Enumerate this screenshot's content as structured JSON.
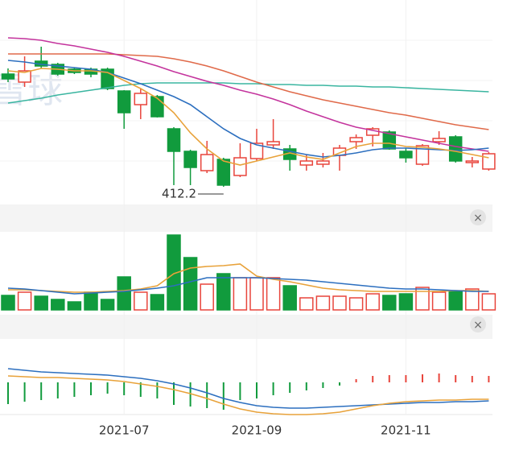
{
  "chart_data": {
    "type": "candlestick",
    "watermark": "雪球",
    "up_color": "#e8453c",
    "down_color": "#119b3d",
    "categories": [
      null,
      null,
      null,
      null,
      null,
      null,
      null,
      "2021-07",
      null,
      null,
      null,
      null,
      null,
      null,
      null,
      "2021-09",
      null,
      null,
      null,
      null,
      null,
      null,
      null,
      null,
      "2021-11",
      null,
      null,
      null,
      null,
      null
    ],
    "ylim": [
      403.2,
      528.2
    ],
    "open": [
      482.2,
      477.2,
      490.2,
      488.2,
      485.2,
      485.2,
      485.2,
      471.7,
      463.2,
      468.2,
      448.2,
      434.2,
      422.2,
      429.2,
      419.2,
      429.7,
      438.2,
      435.7,
      425.7,
      426.2,
      431.7,
      440.2,
      444.2,
      446.2,
      434.2,
      426.2,
      440.2,
      443.2,
      427.2,
      423.2
    ],
    "high": [
      485.7,
      493.2,
      499.2,
      489.2,
      486.2,
      486.2,
      486.2,
      472.2,
      473.2,
      469.2,
      449.2,
      435.2,
      440.7,
      430.2,
      439.2,
      448.2,
      454.2,
      438.2,
      432.2,
      433.2,
      438.2,
      444.7,
      449.2,
      447.2,
      436.2,
      438.7,
      446.7,
      444.2,
      430.7,
      433.7
    ],
    "low": [
      477.2,
      474.2,
      485.7,
      481.2,
      482.2,
      480.2,
      472.2,
      448.2,
      454.2,
      455.2,
      413.2,
      413.2,
      420.7,
      412.2,
      418.2,
      428.2,
      435.7,
      422.2,
      422.2,
      424.2,
      422.2,
      435.7,
      437.2,
      435.2,
      427.2,
      425.2,
      438.2,
      427.2,
      424.2,
      422.2
    ],
    "close": [
      479.2,
      484.2,
      487.2,
      482.2,
      483.2,
      482.2,
      473.2,
      458.2,
      470.2,
      455.7,
      434.2,
      424.2,
      432.2,
      413.2,
      430.2,
      439.2,
      440.2,
      429.2,
      428.2,
      428.2,
      436.2,
      442.7,
      448.2,
      435.7,
      430.2,
      437.7,
      442.2,
      428.2,
      428.2,
      432.7
    ],
    "annotation": {
      "text": "412.2",
      "index": 13
    },
    "lines": [
      {
        "color": "#3ab5a0",
        "values": [
          464.2,
          465.7,
          467.2,
          469.2,
          470.7,
          472.2,
          473.7,
          475.2,
          476.2,
          476.7,
          476.7,
          476.7,
          476.7,
          476.7,
          476.2,
          476.2,
          475.7,
          475.7,
          475.2,
          475.2,
          474.7,
          474.7,
          474.2,
          474.2,
          473.7,
          473.2,
          472.7,
          472.2,
          471.7,
          471.2
        ]
      },
      {
        "color": "#e06a4a",
        "values": [
          494.7,
          494.7,
          494.7,
          494.7,
          494.7,
          494.7,
          494.7,
          494.2,
          493.7,
          493.2,
          491.7,
          489.7,
          487.2,
          484.2,
          480.7,
          477.2,
          474.2,
          471.2,
          468.7,
          466.2,
          464.2,
          462.2,
          460.2,
          458.2,
          456.7,
          454.7,
          452.7,
          450.7,
          449.2,
          447.7
        ]
      },
      {
        "color": "#c4349d",
        "values": [
          504.7,
          504.2,
          503.2,
          501.2,
          499.7,
          497.7,
          495.7,
          493.2,
          490.2,
          487.2,
          483.7,
          480.7,
          477.7,
          475.2,
          472.2,
          469.7,
          466.7,
          463.2,
          459.2,
          455.7,
          452.2,
          449.2,
          447.2,
          445.2,
          443.2,
          441.2,
          439.2,
          437.2,
          435.7,
          434.2
        ]
      },
      {
        "color": "#2c6fbf",
        "values": [
          490.7,
          489.7,
          488.2,
          487.2,
          486.2,
          485.2,
          483.2,
          479.7,
          476.2,
          472.2,
          468.2,
          463.2,
          455.7,
          448.2,
          442.2,
          438.2,
          436.2,
          434.2,
          432.2,
          430.7,
          431.7,
          433.2,
          435.2,
          436.2,
          436.2,
          435.7,
          435.2,
          434.7,
          435.2,
          436.2
        ]
      },
      {
        "color": "#e8a23a",
        "values": [
          484.2,
          483.2,
          485.7,
          485.2,
          484.2,
          484.2,
          483.2,
          478.2,
          473.2,
          467.2,
          458.2,
          445.7,
          435.7,
          428.2,
          425.7,
          428.2,
          430.7,
          433.2,
          430.7,
          429.2,
          433.2,
          437.2,
          439.2,
          439.2,
          437.2,
          436.7,
          435.7,
          434.2,
          432.2,
          430.2
        ]
      }
    ],
    "volume": {
      "ylim": [
        0,
        100
      ],
      "values": [
        18,
        22,
        17,
        13,
        10,
        22,
        13,
        41,
        22,
        19,
        93,
        65,
        32,
        45,
        40,
        40,
        40,
        30,
        15,
        17,
        17,
        15,
        20,
        18,
        20,
        28,
        22,
        23,
        26,
        20
      ],
      "lines": [
        {
          "color": "#e8a23a",
          "values": [
            25,
            25,
            24,
            23,
            22,
            22,
            23,
            24,
            26,
            30,
            45,
            52,
            54,
            55,
            57,
            42,
            38,
            35,
            31,
            27,
            25,
            24,
            23,
            23,
            23,
            23,
            23,
            24,
            24,
            23
          ]
        },
        {
          "color": "#2c6fbf",
          "values": [
            27,
            26,
            24,
            22,
            20,
            21,
            22,
            23,
            25,
            27,
            30,
            35,
            40,
            40,
            40,
            40,
            39,
            38,
            37,
            35,
            33,
            31,
            29,
            27,
            26,
            26,
            25,
            24,
            23,
            23
          ]
        }
      ]
    },
    "macd": {
      "ylim": [
        -40,
        40
      ],
      "hist": [
        -27,
        -24,
        -22,
        -20,
        -18,
        -16,
        -14,
        -16,
        -18,
        -20,
        -28,
        -30,
        -32,
        -34,
        -22,
        -20,
        -16,
        -13,
        -10,
        -7,
        -4,
        4,
        8,
        9,
        9,
        10,
        11,
        9,
        8,
        8
      ],
      "lines": [
        {
          "color": "#2c6fbf",
          "values": [
            17,
            15,
            13,
            12,
            11,
            10,
            9,
            7,
            5,
            2,
            -2,
            -7,
            -13,
            -20,
            -25,
            -29,
            -31,
            -32,
            -32,
            -31,
            -30,
            -29,
            -28,
            -27,
            -26,
            -25,
            -25,
            -24,
            -24,
            -23
          ]
        },
        {
          "color": "#e8a23a",
          "values": [
            8,
            7,
            6,
            6,
            5,
            4,
            3,
            1,
            -2,
            -5,
            -9,
            -14,
            -20,
            -27,
            -33,
            -37,
            -39,
            -40,
            -40,
            -39,
            -37,
            -33,
            -29,
            -26,
            -24,
            -23,
            -22,
            -22,
            -21,
            -21
          ]
        }
      ]
    },
    "close_button": "×"
  }
}
